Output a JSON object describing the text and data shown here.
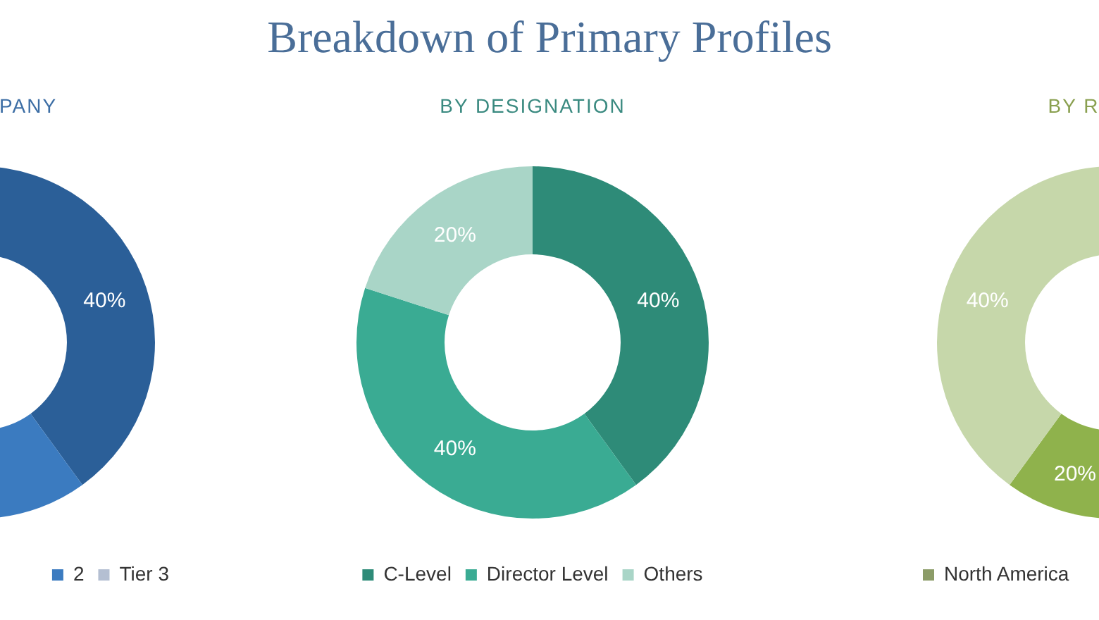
{
  "chart_data": [
    {
      "type": "other",
      "title": "Breakdown of Primary Profiles"
    },
    {
      "type": "donut",
      "title": "PANY",
      "categories": [
        null,
        "2",
        "Tier 3"
      ],
      "values": [
        40,
        35,
        null
      ],
      "colors": [
        "#2b5f98",
        "#3b7bc0",
        "#b4bfd2"
      ],
      "value_labels": [
        "40%",
        null,
        null
      ],
      "legend": "bottom"
    },
    {
      "type": "donut",
      "title": "BY DESIGNATION",
      "categories": [
        "C-Level",
        "Director Level",
        "Others"
      ],
      "values": [
        40,
        40,
        20
      ],
      "colors": [
        "#2e8b78",
        "#3aab93",
        "#a9d5c7"
      ],
      "value_labels": [
        "40%",
        "40%",
        "20%"
      ],
      "legend": "bottom"
    },
    {
      "type": "donut",
      "title": "BY R",
      "categories": [
        "North America",
        null,
        null
      ],
      "values": [
        null,
        20,
        40
      ],
      "colors": [
        "#8c9c68",
        "#8fb24c",
        "#c6d7aa"
      ],
      "value_labels": [
        null,
        "20%",
        "40%"
      ],
      "legend": "bottom"
    }
  ]
}
